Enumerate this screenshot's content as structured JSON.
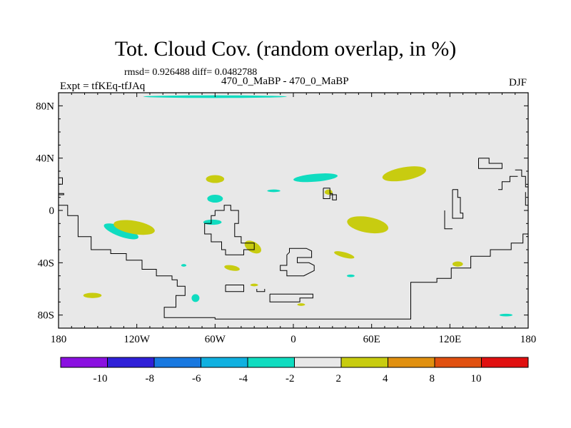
{
  "header": {
    "title": "Tot. Cloud Cov. (random overlap, in %)",
    "stats": "rmsd= 0.926488 diff= 0.0482788",
    "experiment": "Expt = tfKEq-tfJAq",
    "case": "470_0_MaBP - 470_0_MaBP",
    "season": "DJF"
  },
  "colors": {
    "background_fill": "#e8e8e8",
    "coast": "#000000",
    "pos_2_4": "#c8cc10",
    "neg_4_2": "#10dcc0"
  },
  "chart_data": {
    "type": "heatmap",
    "title": "Tot. Cloud Cov. (random overlap, in %)",
    "xlim": [
      -180,
      180
    ],
    "ylim": [
      -90,
      90
    ],
    "x_ticks": [
      {
        "value": -180,
        "label": "180"
      },
      {
        "value": -120,
        "label": "120W"
      },
      {
        "value": -60,
        "label": "60W"
      },
      {
        "value": 0,
        "label": "0"
      },
      {
        "value": 60,
        "label": "60E"
      },
      {
        "value": 120,
        "label": "120E"
      },
      {
        "value": 180,
        "label": "180"
      }
    ],
    "y_ticks": [
      {
        "value": 80,
        "label": "80N"
      },
      {
        "value": 40,
        "label": "40N"
      },
      {
        "value": 0,
        "label": "0"
      },
      {
        "value": -40,
        "label": "40S"
      },
      {
        "value": -80,
        "label": "80S"
      }
    ],
    "colorbar": {
      "colors": [
        "#8a10e0",
        "#3020d8",
        "#1878e0",
        "#10b0e0",
        "#10dcc0",
        "#e8e8e8",
        "#c8cc10",
        "#e09010",
        "#e05010",
        "#e01010"
      ],
      "labels": [
        "-10",
        "-8",
        "-6",
        "-4",
        "-2",
        "2",
        "4",
        "8",
        "10"
      ]
    },
    "regions": [
      {
        "class": "neg_4_2",
        "lon": -132,
        "lat": -16,
        "rx": 14,
        "ry": 4,
        "rot": 20
      },
      {
        "class": "neg_4_2",
        "lon": -62,
        "lat": -9,
        "rx": 7,
        "ry": 2,
        "rot": 0
      },
      {
        "class": "neg_4_2",
        "lon": -60,
        "lat": 9,
        "rx": 6,
        "ry": 3,
        "rot": 0
      },
      {
        "class": "neg_4_2",
        "lon": 17,
        "lat": 25,
        "rx": 17,
        "ry": 3,
        "rot": -5
      },
      {
        "class": "neg_4_2",
        "lon": -15,
        "lat": 15,
        "rx": 5,
        "ry": 1,
        "rot": 0
      },
      {
        "class": "neg_4_2",
        "lon": -75,
        "lat": -67,
        "rx": 3,
        "ry": 3,
        "rot": 0
      },
      {
        "class": "neg_4_2",
        "lon": 44,
        "lat": -50,
        "rx": 3,
        "ry": 1,
        "rot": 0
      },
      {
        "class": "neg_4_2",
        "lon": -84,
        "lat": -42,
        "rx": 2,
        "ry": 1,
        "rot": 0
      },
      {
        "class": "neg_4_2",
        "lon": 163,
        "lat": -80,
        "rx": 5,
        "ry": 1,
        "rot": 0
      },
      {
        "class": "neg_4_2",
        "lon": -60,
        "lat": 87,
        "rx": 55,
        "ry": 1,
        "rot": 0
      },
      {
        "class": "pos_2_4",
        "lon": -122,
        "lat": -13,
        "rx": 16,
        "ry": 5,
        "rot": 10
      },
      {
        "class": "pos_2_4",
        "lon": -60,
        "lat": 24,
        "rx": 7,
        "ry": 3,
        "rot": 0
      },
      {
        "class": "pos_2_4",
        "lon": 85,
        "lat": 28,
        "rx": 17,
        "ry": 5,
        "rot": -10
      },
      {
        "class": "pos_2_4",
        "lon": 57,
        "lat": -11,
        "rx": 16,
        "ry": 6,
        "rot": 10
      },
      {
        "class": "pos_2_4",
        "lon": -31,
        "lat": -28,
        "rx": 7,
        "ry": 4,
        "rot": 30
      },
      {
        "class": "pos_2_4",
        "lon": 39,
        "lat": -34,
        "rx": 8,
        "ry": 2,
        "rot": 15
      },
      {
        "class": "pos_2_4",
        "lon": 27,
        "lat": 14,
        "rx": 3,
        "ry": 2,
        "rot": 0
      },
      {
        "class": "pos_2_4",
        "lon": -47,
        "lat": -44,
        "rx": 6,
        "ry": 2,
        "rot": 10
      },
      {
        "class": "pos_2_4",
        "lon": -154,
        "lat": -65,
        "rx": 7,
        "ry": 2,
        "rot": 0
      },
      {
        "class": "pos_2_4",
        "lon": 126,
        "lat": -41,
        "rx": 4,
        "ry": 2,
        "rot": 0
      },
      {
        "class": "pos_2_4",
        "lon": -30,
        "lat": -57,
        "rx": 3,
        "ry": 1,
        "rot": 0
      },
      {
        "class": "pos_2_4",
        "lon": 6,
        "lat": -72,
        "rx": 3,
        "ry": 1,
        "rot": 0
      }
    ],
    "coastlines": [
      [
        [
          -180,
          4
        ],
        [
          -173,
          4
        ],
        [
          -173,
          -4
        ],
        [
          -165,
          -4
        ],
        [
          -165,
          -20
        ],
        [
          -155,
          -20
        ],
        [
          -155,
          -30
        ],
        [
          -140,
          -30
        ],
        [
          -140,
          -33
        ],
        [
          -128,
          -33
        ],
        [
          -128,
          -38
        ],
        [
          -116,
          -38
        ],
        [
          -116,
          -45
        ],
        [
          -105,
          -45
        ],
        [
          -105,
          -50
        ],
        [
          -93,
          -50
        ],
        [
          -93,
          -53
        ],
        [
          -89,
          -53
        ],
        [
          -89,
          -58
        ],
        [
          -83,
          -58
        ],
        [
          -83,
          -65
        ],
        [
          -90,
          -65
        ],
        [
          -90,
          -70
        ],
        [
          -90,
          -74
        ],
        [
          -99,
          -74
        ],
        [
          -99,
          -78
        ],
        [
          -99,
          -82
        ],
        [
          -75,
          -82
        ],
        [
          -60,
          -82
        ],
        [
          -60,
          -83
        ],
        [
          90,
          -83
        ],
        [
          90,
          -55
        ],
        [
          110,
          -55
        ],
        [
          110,
          -52
        ],
        [
          121,
          -52
        ],
        [
          121,
          -44
        ],
        [
          136,
          -44
        ],
        [
          136,
          -35
        ],
        [
          151,
          -35
        ],
        [
          151,
          -30
        ],
        [
          167,
          -30
        ],
        [
          167,
          -25
        ],
        [
          176,
          -25
        ],
        [
          176,
          -18
        ],
        [
          180,
          -18
        ]
      ],
      [
        [
          -180,
          25
        ],
        [
          -177,
          25
        ],
        [
          -177,
          20
        ],
        [
          -180,
          20
        ]
      ],
      [
        [
          -180,
          13
        ],
        [
          -176,
          13
        ],
        [
          -176,
          12
        ],
        [
          -180,
          12
        ]
      ],
      [
        [
          -60,
          0
        ],
        [
          -53,
          0
        ],
        [
          -53,
          4
        ],
        [
          -48,
          4
        ],
        [
          -48,
          0
        ],
        [
          -42,
          0
        ],
        [
          -42,
          -10
        ],
        [
          -45,
          -10
        ],
        [
          -45,
          -20
        ],
        [
          -40,
          -20
        ],
        [
          -40,
          -25
        ],
        [
          -30,
          -25
        ],
        [
          -30,
          -30
        ],
        [
          -38,
          -30
        ],
        [
          -38,
          -34
        ],
        [
          -52,
          -34
        ],
        [
          -52,
          -30
        ],
        [
          -55,
          -30
        ],
        [
          -55,
          -24
        ],
        [
          -63,
          -24
        ],
        [
          -63,
          -18
        ],
        [
          -68,
          -18
        ],
        [
          -68,
          -10
        ],
        [
          -63,
          -10
        ],
        [
          -63,
          -4
        ],
        [
          -60,
          -4
        ],
        [
          -60,
          0
        ]
      ],
      [
        [
          -5,
          -34
        ],
        [
          -3,
          -32
        ],
        [
          -3,
          -29
        ],
        [
          10,
          -29
        ],
        [
          14,
          -31
        ],
        [
          14,
          -36
        ],
        [
          3,
          -36
        ],
        [
          3,
          -40
        ],
        [
          12,
          -40
        ],
        [
          16,
          -42
        ],
        [
          16,
          -46
        ],
        [
          8,
          -50
        ],
        [
          -5,
          -50
        ],
        [
          -5,
          -46
        ],
        [
          -10,
          -46
        ],
        [
          -10,
          -42
        ],
        [
          -5,
          -42
        ],
        [
          -5,
          -34
        ]
      ],
      [
        [
          23,
          17
        ],
        [
          28,
          17
        ],
        [
          28,
          13
        ],
        [
          30,
          13
        ],
        [
          30,
          8
        ],
        [
          33,
          8
        ],
        [
          33,
          12
        ],
        [
          28,
          12
        ],
        [
          28,
          9
        ],
        [
          23,
          9
        ],
        [
          23,
          17
        ]
      ],
      [
        [
          -52,
          -57
        ],
        [
          -38,
          -57
        ],
        [
          -38,
          -62
        ],
        [
          -52,
          -62
        ],
        [
          -52,
          -57
        ]
      ],
      [
        [
          -18,
          -64
        ],
        [
          15,
          -64
        ],
        [
          15,
          -67
        ],
        [
          5,
          -67
        ],
        [
          5,
          -70
        ],
        [
          -18,
          -70
        ],
        [
          -18,
          -64
        ]
      ],
      [
        [
          -28,
          -60
        ],
        [
          -28,
          -62
        ],
        [
          -22,
          -62
        ],
        [
          -22,
          -60
        ]
      ],
      [
        [
          142,
          40
        ],
        [
          150,
          40
        ],
        [
          150,
          36
        ],
        [
          160,
          36
        ],
        [
          160,
          32
        ],
        [
          142,
          32
        ],
        [
          142,
          40
        ]
      ],
      [
        [
          170,
          31
        ],
        [
          175,
          31
        ],
        [
          175,
          26
        ],
        [
          178,
          26
        ],
        [
          178,
          18
        ],
        [
          180,
          18
        ]
      ],
      [
        [
          180,
          4
        ],
        [
          178,
          4
        ],
        [
          178,
          14
        ]
      ],
      [
        [
          122,
          16
        ],
        [
          126,
          16
        ],
        [
          126,
          10
        ],
        [
          128,
          10
        ],
        [
          128,
          -2
        ],
        [
          130,
          -2
        ],
        [
          130,
          -6
        ],
        [
          122,
          -6
        ],
        [
          122,
          16
        ]
      ],
      [
        [
          116,
          0
        ],
        [
          116,
          -14
        ],
        [
          122,
          -14
        ]
      ],
      [
        [
          157,
          16
        ],
        [
          160,
          16
        ],
        [
          160,
          22
        ],
        [
          166,
          22
        ],
        [
          166,
          26
        ],
        [
          172,
          26
        ]
      ]
    ]
  }
}
